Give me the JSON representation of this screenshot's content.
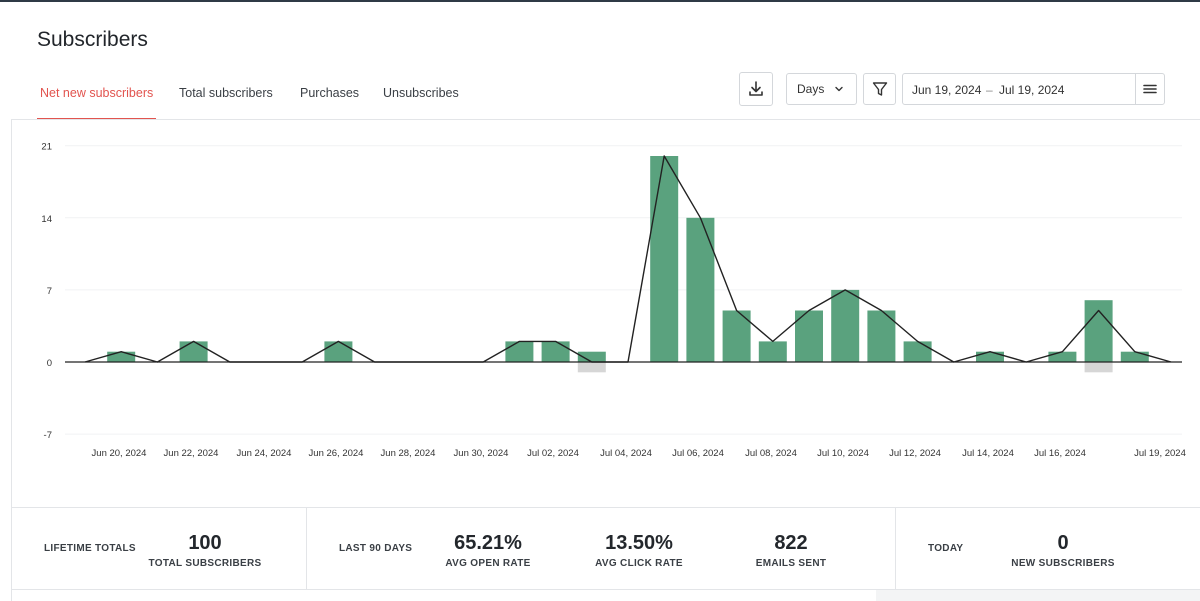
{
  "page": {
    "title": "Subscribers"
  },
  "tabs": [
    {
      "label": "Net new subscribers",
      "active": true
    },
    {
      "label": "Total subscribers",
      "active": false
    },
    {
      "label": "Purchases",
      "active": false
    },
    {
      "label": "Unsubscribes",
      "active": false
    }
  ],
  "toolbar": {
    "download_icon": "download-icon",
    "interval": {
      "selected": "Days",
      "icon": "chevron-down-icon"
    },
    "filter_icon": "filter-icon",
    "date_range": {
      "start": "Jun 19, 2024",
      "separator": "–",
      "end": "Jul 19, 2024"
    },
    "menu_icon": "hamburger-icon"
  },
  "colors": {
    "accent": "#e2544f",
    "bar": "#5aa27e",
    "negative_bar": "#d6d6d6",
    "line": "#222222"
  },
  "chart_data": {
    "type": "bar",
    "y_ticks": [
      "21",
      "14",
      "7",
      "0",
      "-7"
    ],
    "ylim": [
      -7,
      21
    ],
    "grid": true,
    "x_labels": [
      "Jun 20, 2024",
      "Jun 22, 2024",
      "Jun 24, 2024",
      "Jun 26, 2024",
      "Jun 28, 2024",
      "Jun 30, 2024",
      "Jul 02, 2024",
      "Jul 04, 2024",
      "Jul 06, 2024",
      "Jul 08, 2024",
      "Jul 10, 2024",
      "Jul 12, 2024",
      "Jul 14, 2024",
      "Jul 16, 2024",
      "Jul 19, 2024"
    ],
    "categories": [
      "Jun 19",
      "Jun 20",
      "Jun 21",
      "Jun 22",
      "Jun 23",
      "Jun 24",
      "Jun 25",
      "Jun 26",
      "Jun 27",
      "Jun 28",
      "Jun 29",
      "Jun 30",
      "Jul 01",
      "Jul 02",
      "Jul 03",
      "Jul 04",
      "Jul 05",
      "Jul 06",
      "Jul 07",
      "Jul 08",
      "Jul 09",
      "Jul 10",
      "Jul 11",
      "Jul 12",
      "Jul 13",
      "Jul 14",
      "Jul 15",
      "Jul 16",
      "Jul 17",
      "Jul 18",
      "Jul 19"
    ],
    "series": [
      {
        "values": [
          0,
          1,
          0,
          2,
          0,
          0,
          0,
          2,
          0,
          0,
          0,
          0,
          2,
          2,
          1,
          0,
          20,
          14,
          5,
          2,
          5,
          7,
          5,
          2,
          0,
          1,
          0,
          1,
          6,
          1,
          0
        ]
      },
      {
        "values": [
          0,
          0,
          0,
          0,
          0,
          0,
          0,
          0,
          0,
          0,
          0,
          0,
          0,
          0,
          -1,
          0,
          0,
          0,
          0,
          0,
          0,
          0,
          0,
          0,
          0,
          0,
          0,
          0,
          -1,
          0,
          0
        ]
      },
      {
        "type": "line",
        "values": [
          0,
          1,
          0,
          2,
          0,
          0,
          0,
          2,
          0,
          0,
          0,
          0,
          2,
          2,
          0,
          0,
          20,
          14,
          5,
          2,
          5,
          7,
          5,
          2,
          0,
          1,
          0,
          1,
          5,
          1,
          0
        ]
      }
    ]
  },
  "stats": {
    "lifetime": {
      "label": "LIFETIME TOTALS",
      "value": "100",
      "sub": "TOTAL SUBSCRIBERS"
    },
    "last90": {
      "label": "LAST 90 DAYS",
      "items": [
        {
          "value": "65.21%",
          "sub": "AVG OPEN RATE"
        },
        {
          "value": "13.50%",
          "sub": "AVG CLICK RATE"
        },
        {
          "value": "822",
          "sub": "EMAILS SENT"
        }
      ]
    },
    "today": {
      "label": "TODAY",
      "value": "0",
      "sub": "NEW SUBSCRIBERS"
    }
  }
}
